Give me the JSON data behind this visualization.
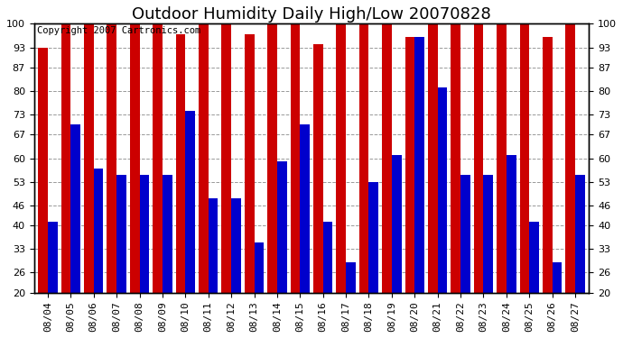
{
  "title": "Outdoor Humidity Daily High/Low 20070828",
  "copyright": "Copyright 2007 Cartronics.com",
  "dates": [
    "08/04",
    "08/05",
    "08/06",
    "08/07",
    "08/08",
    "08/09",
    "08/10",
    "08/11",
    "08/12",
    "08/13",
    "08/14",
    "08/15",
    "08/16",
    "08/17",
    "08/18",
    "08/19",
    "08/20",
    "08/21",
    "08/22",
    "08/23",
    "08/24",
    "08/25",
    "08/26",
    "08/27"
  ],
  "highs": [
    93,
    100,
    100,
    100,
    100,
    100,
    97,
    100,
    100,
    97,
    100,
    100,
    94,
    100,
    100,
    100,
    96,
    100,
    100,
    100,
    100,
    100,
    96,
    100
  ],
  "lows": [
    41,
    70,
    57,
    55,
    55,
    55,
    74,
    48,
    48,
    35,
    59,
    70,
    41,
    29,
    53,
    61,
    96,
    81,
    55,
    55,
    61,
    41,
    29,
    55
  ],
  "high_color": "#cc0000",
  "low_color": "#0000cc",
  "bg_color": "#ffffff",
  "plot_bg_color": "#ffffff",
  "grid_color": "#999999",
  "yticks": [
    20,
    26,
    33,
    40,
    46,
    53,
    60,
    67,
    73,
    80,
    87,
    93,
    100
  ],
  "ymin": 20,
  "ymax": 100,
  "title_fontsize": 13,
  "tick_fontsize": 8,
  "copyright_fontsize": 7.5
}
